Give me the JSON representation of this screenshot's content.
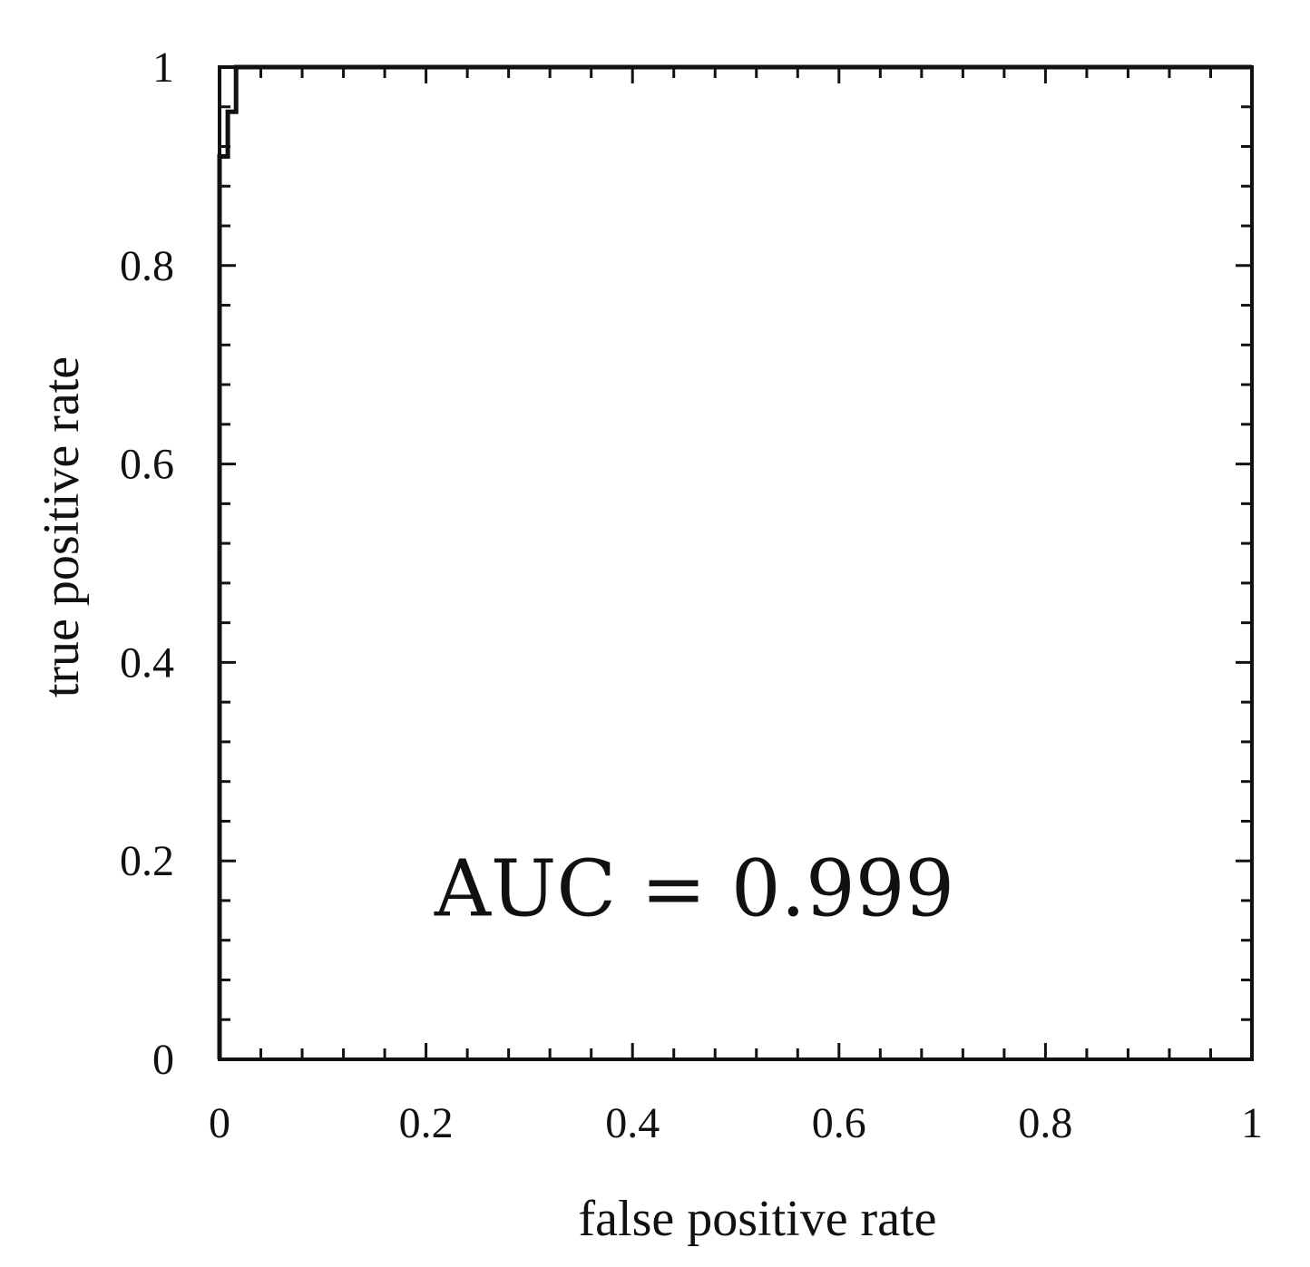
{
  "chart_data": {
    "type": "line",
    "title": "",
    "xlabel": "false positive rate",
    "ylabel": "true positive rate",
    "xlim": [
      0,
      1
    ],
    "ylim": [
      0,
      1
    ],
    "x_ticks": [
      0,
      0.2,
      0.4,
      0.6,
      0.8,
      1
    ],
    "y_ticks": [
      0,
      0.2,
      0.4,
      0.6,
      0.8,
      1
    ],
    "x_tick_labels": [
      "0",
      "0.2",
      "0.4",
      "0.6",
      "0.8",
      "1"
    ],
    "y_tick_labels": [
      "0",
      "0.2",
      "0.4",
      "0.6",
      "0.8",
      "1"
    ],
    "x_minor_step": 0.04,
    "y_minor_step": 0.04,
    "grid": false,
    "series": [
      {
        "x": [
          0,
          0,
          0.008,
          0.008,
          0.016,
          0.016,
          1
        ],
        "y": [
          0,
          0.91,
          0.91,
          0.955,
          0.955,
          1,
          1
        ]
      }
    ],
    "annotations": [
      {
        "text": "AUC = 0.999",
        "x": 0.46,
        "y": 0.145
      }
    ]
  }
}
